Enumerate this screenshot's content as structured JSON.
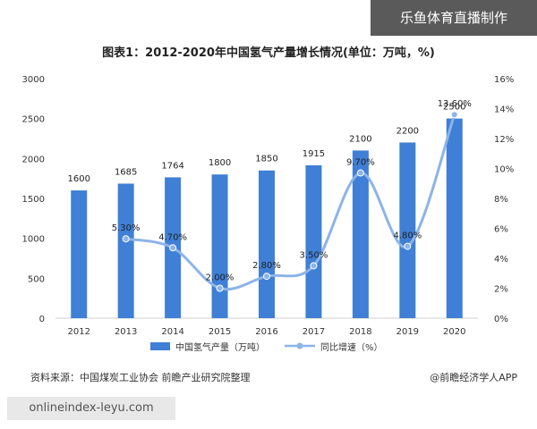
{
  "banner": "乐鱼体育直播制作",
  "footer": {
    "source": "资料来源：中国煤炭工业协会 前瞻产业研究院整理",
    "brand": "@前瞻经济学人APP",
    "url": "onlineindex-leyu.com"
  },
  "chart_data": {
    "type": "bar",
    "title": "图表1：2012-2020年中国氢气产量增长情况(单位：万吨，%)",
    "categories": [
      "2012",
      "2013",
      "2014",
      "2015",
      "2016",
      "2017",
      "2018",
      "2019",
      "2020"
    ],
    "series": [
      {
        "name": "中国氢气产量（万吨）",
        "type": "bar",
        "axis": "left",
        "values": [
          1600,
          1685,
          1764,
          1800,
          1850,
          1915,
          2100,
          2200,
          2500
        ],
        "labels": [
          "1600",
          "1685",
          "1764",
          "1800",
          "1850",
          "1915",
          "2100",
          "2200",
          "2500"
        ]
      },
      {
        "name": "同比增速（%）",
        "type": "line",
        "axis": "right",
        "values": [
          null,
          5.3,
          4.7,
          2.0,
          2.8,
          3.5,
          9.7,
          4.8,
          13.6
        ],
        "labels": [
          "",
          "5.30%",
          "4.70%",
          "2.00%",
          "2.80%",
          "3.50%",
          "9.70%",
          "4.80%",
          "13.60%"
        ]
      }
    ],
    "yleft": {
      "lim": [
        0,
        3000
      ],
      "ticks": [
        "0",
        "500",
        "1000",
        "1500",
        "2000",
        "2500",
        "3000"
      ]
    },
    "yright": {
      "lim": [
        0,
        16
      ],
      "ticks": [
        "0%",
        "2%",
        "4%",
        "6%",
        "8%",
        "10%",
        "12%",
        "14%",
        "16%"
      ]
    },
    "grid": false,
    "legend": "bottom",
    "colors": {
      "bar": "#3f7fd6",
      "line": "#8cb4e8",
      "text": "#333333"
    }
  }
}
